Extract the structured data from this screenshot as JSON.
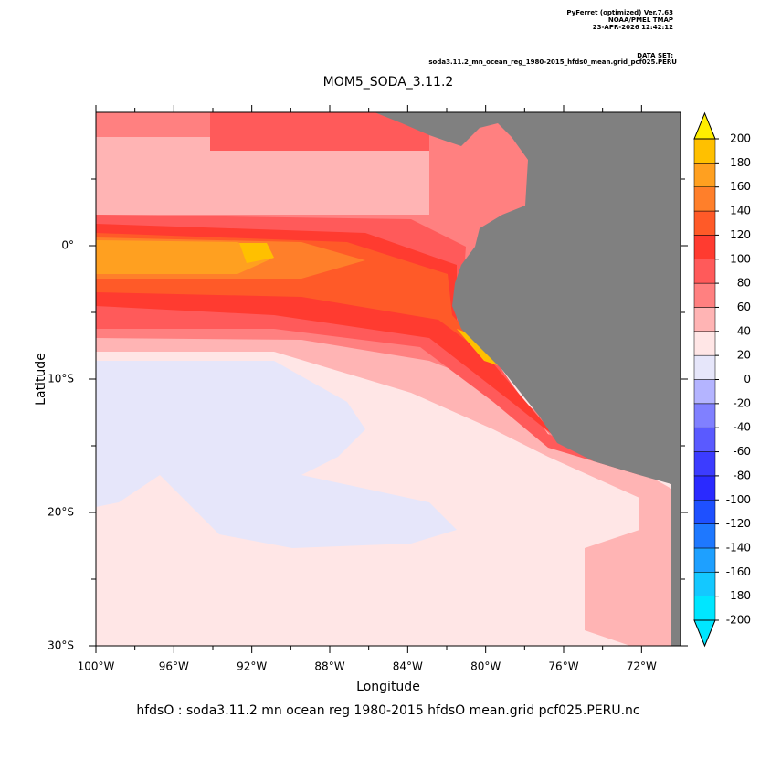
{
  "chart_data": {
    "type": "map",
    "header": [
      "PyFerret (optimized) Ver.7.63",
      "NOAA/PMEL TMAP",
      "23-APR-2026 12:42:12"
    ],
    "dataset_label": "DATA SET:",
    "dataset": "soda3.11.2_mn_ocean_reg_1980-2015_hfds0_mean.grid_pcf025.PERU",
    "title": "MOM5_SODA_3.11.2",
    "xlabel": "Longitude",
    "ylabel": "Latitude",
    "footnote": "hfdsO : soda3.11.2 mn ocean reg 1980-2015 hfdsO mean.grid pcf025.PERU.nc",
    "xlim": [
      -100,
      -70
    ],
    "ylim": [
      -30,
      10
    ],
    "xticks": [
      {
        "value": -100,
        "label": "100°W"
      },
      {
        "value": -96,
        "label": "96°W"
      },
      {
        "value": -92,
        "label": "92°W"
      },
      {
        "value": -88,
        "label": "88°W"
      },
      {
        "value": -84,
        "label": "84°W"
      },
      {
        "value": -80,
        "label": "80°W"
      },
      {
        "value": -76,
        "label": "76°W"
      },
      {
        "value": -72,
        "label": "72°W"
      }
    ],
    "yticks": [
      {
        "value": 0,
        "label": "0°"
      },
      {
        "value": -10,
        "label": "10°S"
      },
      {
        "value": -20,
        "label": "20°S"
      },
      {
        "value": -30,
        "label": "30°S"
      }
    ],
    "colorbar": {
      "levels": [
        -200,
        -180,
        -160,
        -140,
        -120,
        -100,
        -80,
        -60,
        -40,
        -20,
        0,
        20,
        40,
        60,
        80,
        100,
        120,
        140,
        160,
        180,
        200
      ],
      "colors": [
        "#00e6ff",
        "#14c8ff",
        "#1ea0ff",
        "#1e78ff",
        "#1e50ff",
        "#2a2aff",
        "#3c3cff",
        "#5a5aff",
        "#8080ff",
        "#b4b4ff",
        "#e6e6fa",
        "#ffe6e6",
        "#ffb4b4",
        "#ff8080",
        "#ff5a5a",
        "#ff3b30",
        "#ff5a28",
        "#ff7f2a",
        "#ffa020",
        "#ffc000",
        "#ffee00"
      ]
    }
  }
}
